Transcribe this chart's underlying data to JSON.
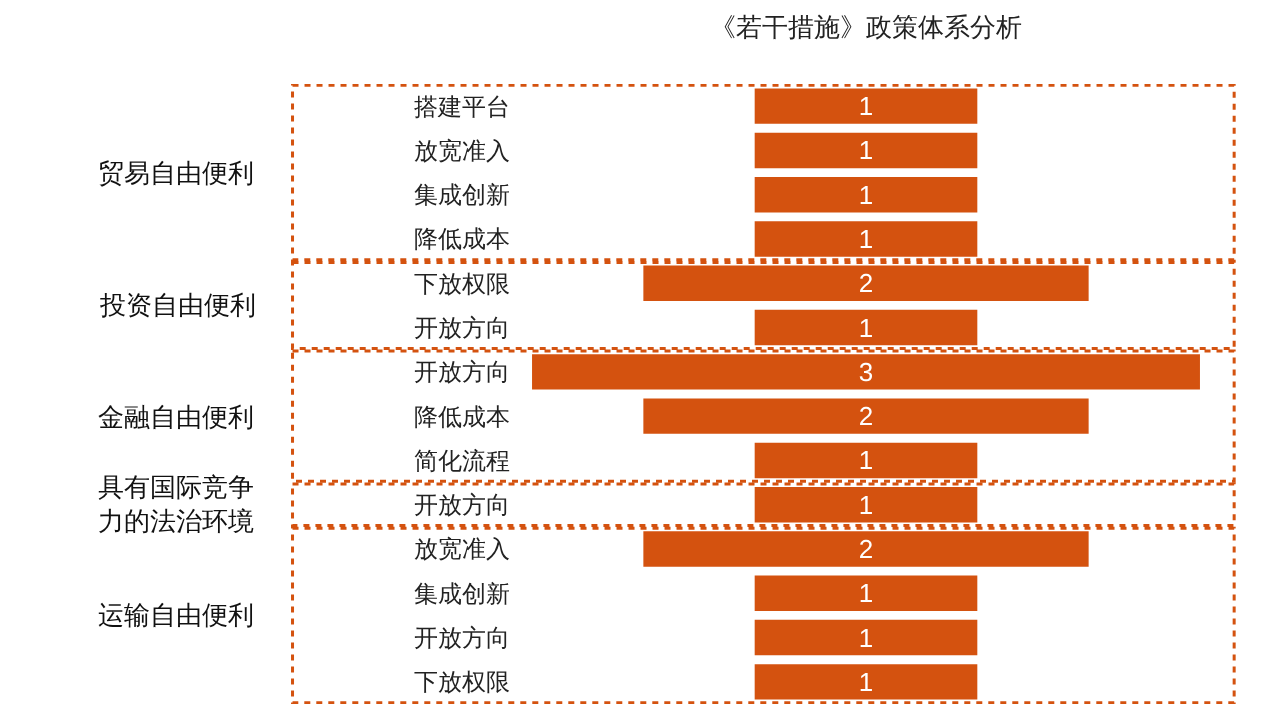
{
  "chart_data": {
    "type": "other",
    "title": "《若干措施》政策体系分析",
    "categories": [
      "搭建平台",
      "放宽准入",
      "集成创新",
      "降低成本",
      "下放权限",
      "开放方向",
      "开放方向",
      "降低成本",
      "简化流程",
      "开放方向",
      "放宽准入",
      "集成创新",
      "开放方向",
      "下放权限"
    ],
    "values": [
      1,
      1,
      1,
      1,
      2,
      1,
      3,
      2,
      1,
      1,
      2,
      1,
      1,
      1
    ],
    "color": "#d4520f",
    "data_labels": true,
    "annotations": [
      "贸易自由便利",
      "投资自由便利",
      "金融自由便利",
      "具有国际竞争力的法治环境",
      "运输自由便利"
    ]
  }
}
